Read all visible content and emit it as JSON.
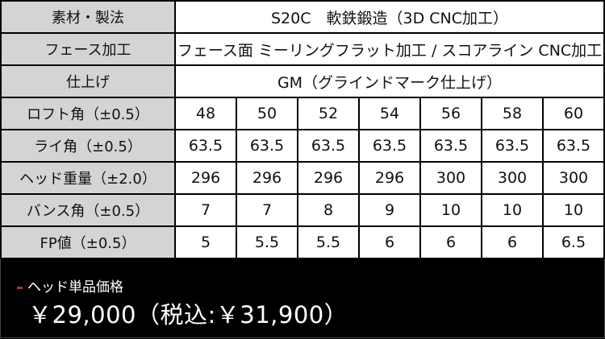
{
  "specs": {
    "rows_full": [
      {
        "label": "素材・製法",
        "value": "S20C　軟鉄鍛造（3D CNC加工）"
      },
      {
        "label": "フェース加工",
        "value": "フェース面 ミーリングフラット加工 / スコアライン CNC加工"
      },
      {
        "label": "仕上げ",
        "value": "GM（グラインドマーク仕上げ）"
      }
    ],
    "rows_grid": [
      {
        "label": "ロフト角（±0.5）",
        "values": [
          "48",
          "50",
          "52",
          "54",
          "56",
          "58",
          "60"
        ]
      },
      {
        "label": "ライ角（±0.5）",
        "values": [
          "63.5",
          "63.5",
          "63.5",
          "63.5",
          "63.5",
          "63.5",
          "63.5"
        ]
      },
      {
        "label": "ヘッド重量（±2.0）",
        "values": [
          "296",
          "296",
          "296",
          "296",
          "300",
          "300",
          "300"
        ]
      },
      {
        "label": "バンス角（±0.5）",
        "values": [
          "7",
          "7",
          "8",
          "9",
          "10",
          "10",
          "10"
        ]
      },
      {
        "label": "FP値（±0.5）",
        "values": [
          "5",
          "5.5",
          "5.5",
          "6",
          "6",
          "6",
          "6.5"
        ]
      }
    ]
  },
  "price": {
    "title": "ヘッド単品価格",
    "value": "￥29,000（税込:￥31,900）",
    "accent_color": "#c0272d"
  }
}
